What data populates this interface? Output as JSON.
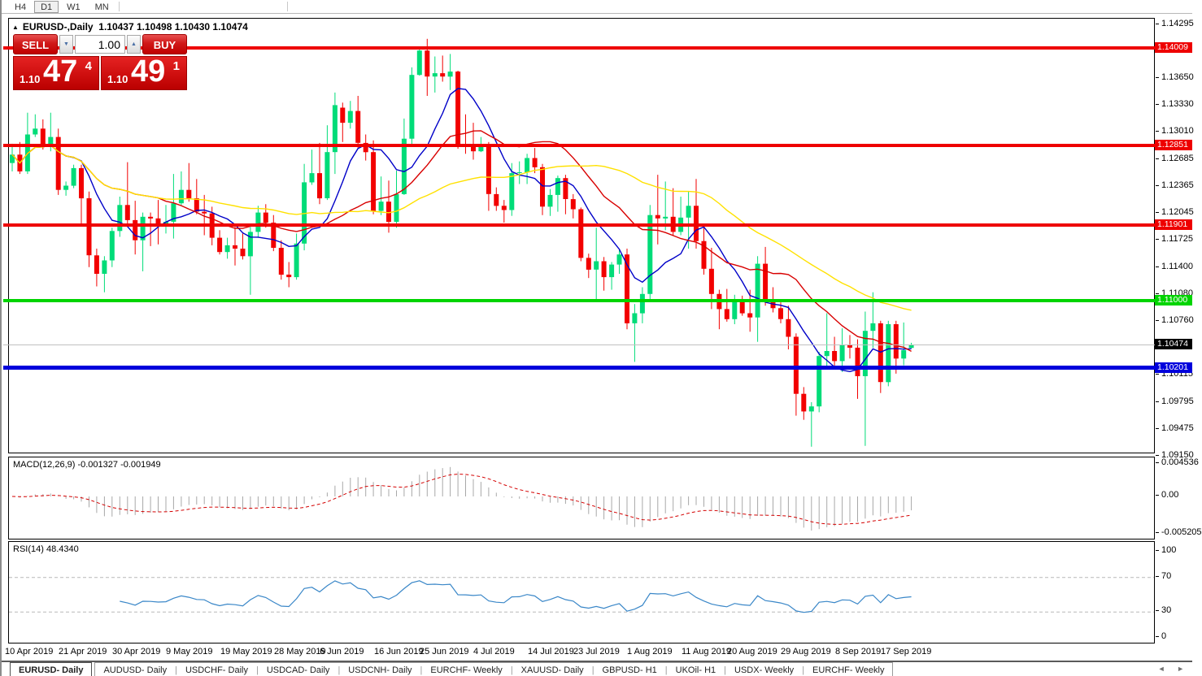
{
  "toolbar": {
    "timeframes": [
      {
        "label": "H4",
        "active": false
      },
      {
        "label": "D1",
        "active": true
      },
      {
        "label": "W1",
        "active": false
      },
      {
        "label": "MN",
        "active": false
      }
    ]
  },
  "chart": {
    "collapse_icon": "▲",
    "symbol_title": "EURUSD-,Daily",
    "ohlc_line": "1.10437 1.10498 1.10430 1.10474",
    "trade": {
      "sell_label": "SELL",
      "buy_label": "BUY",
      "volume": "1.00",
      "down_arrow": "▼",
      "up_arrow": "▲",
      "sell_small": "1.10",
      "sell_big": "47",
      "sell_sup": "4",
      "buy_small": "1.10",
      "buy_big": "49",
      "buy_sup": "1"
    }
  },
  "chart_data": {
    "type": "candlestick",
    "symbol": "EURUSD-",
    "period": "Daily",
    "current_bar": {
      "open": 1.10437,
      "high": 1.10498,
      "low": 1.1043,
      "close": 1.10474
    },
    "bid": {
      "label": "1.10474",
      "price": 1.10474,
      "line_color": "#C0C0C0",
      "badge_color": "#000000"
    },
    "y_range": [
      1.0919,
      1.1436
    ],
    "y_ticks": [
      "1.14295",
      "1.13650",
      "1.13330",
      "1.13010",
      "1.12685",
      "1.12365",
      "1.12045",
      "1.11725",
      "1.11400",
      "1.11080",
      "1.10760",
      "1.10115",
      "1.09795",
      "1.09475",
      "1.09150"
    ],
    "price_lines": [
      {
        "label": "1.14009",
        "price": 1.14009,
        "color": "#EE0000",
        "width": 4
      },
      {
        "label": "1.12851",
        "price": 1.12851,
        "color": "#EE0000",
        "width": 4
      },
      {
        "label": "1.11901",
        "price": 1.11901,
        "color": "#EE0000",
        "width": 4
      },
      {
        "label": "1.11000",
        "price": 1.11,
        "color": "#00D400",
        "width": 4
      },
      {
        "label": "1.10201",
        "price": 1.10201,
        "color": "#0000DC",
        "width": 5
      }
    ],
    "bull_color": "#00DC78",
    "bear_color": "#F20000",
    "moving_averages": [
      {
        "name": "ma-fast",
        "period": 8,
        "color": "#0000C8"
      },
      {
        "name": "ma-mid",
        "period": 20,
        "color": "#D80000"
      },
      {
        "name": "ma-slow",
        "period": 40,
        "color": "#FFE100"
      }
    ],
    "x_labels": [
      {
        "label": "10 Apr 2019",
        "index": 0
      },
      {
        "label": "21 Apr 2019",
        "index": 7
      },
      {
        "label": "30 Apr 2019",
        "index": 14
      },
      {
        "label": "9 May 2019",
        "index": 21
      },
      {
        "label": "19 May 2019",
        "index": 28
      },
      {
        "label": "28 May 2019",
        "index": 35
      },
      {
        "label": "6 Jun 2019",
        "index": 41
      },
      {
        "label": "16 Jun 2019",
        "index": 48
      },
      {
        "label": "25 Jun 2019",
        "index": 54
      },
      {
        "label": "4 Jul 2019",
        "index": 61
      },
      {
        "label": "14 Jul 2019",
        "index": 68
      },
      {
        "label": "23 Jul 2019",
        "index": 74
      },
      {
        "label": "1 Aug 2019",
        "index": 81
      },
      {
        "label": "11 Aug 2019",
        "index": 88
      },
      {
        "label": "20 Aug 2019",
        "index": 94
      },
      {
        "label": "29 Aug 2019",
        "index": 101
      },
      {
        "label": "8 Sep 2019",
        "index": 108
      },
      {
        "label": "17 Sep 2019",
        "index": 114
      }
    ],
    "candles": [
      [
        1.1264,
        1.1287,
        1.1254,
        1.1274
      ],
      [
        1.1274,
        1.1289,
        1.1251,
        1.1254
      ],
      [
        1.1254,
        1.1324,
        1.1251,
        1.1298
      ],
      [
        1.1298,
        1.1322,
        1.1295,
        1.1305
      ],
      [
        1.1305,
        1.1316,
        1.128,
        1.1285
      ],
      [
        1.1285,
        1.1324,
        1.1278,
        1.1295
      ],
      [
        1.1295,
        1.1305,
        1.1226,
        1.1232
      ],
      [
        1.1232,
        1.1242,
        1.1225,
        1.1237
      ],
      [
        1.1237,
        1.1262,
        1.1234,
        1.1258
      ],
      [
        1.1258,
        1.1262,
        1.1192,
        1.1222
      ],
      [
        1.1222,
        1.123,
        1.114,
        1.1154
      ],
      [
        1.1154,
        1.1162,
        1.1117,
        1.1132
      ],
      [
        1.1132,
        1.1153,
        1.111,
        1.1148
      ],
      [
        1.1148,
        1.1187,
        1.114,
        1.1183
      ],
      [
        1.1183,
        1.1224,
        1.1176,
        1.1214
      ],
      [
        1.1214,
        1.1265,
        1.119,
        1.1196
      ],
      [
        1.1196,
        1.1219,
        1.1155,
        1.1172
      ],
      [
        1.1172,
        1.1205,
        1.1135,
        1.12
      ],
      [
        1.12,
        1.1205,
        1.1165,
        1.1198
      ],
      [
        1.1198,
        1.122,
        1.1167,
        1.1192
      ],
      [
        1.1192,
        1.1214,
        1.118,
        1.1194
      ],
      [
        1.1194,
        1.1251,
        1.1174,
        1.1216
      ],
      [
        1.1216,
        1.1254,
        1.1214,
        1.1232
      ],
      [
        1.1232,
        1.1264,
        1.1218,
        1.1222
      ],
      [
        1.1222,
        1.1245,
        1.1203,
        1.1206
      ],
      [
        1.1206,
        1.1226,
        1.1178,
        1.1204
      ],
      [
        1.1204,
        1.1212,
        1.1166,
        1.1175
      ],
      [
        1.1175,
        1.1184,
        1.1155,
        1.1158
      ],
      [
        1.1158,
        1.1175,
        1.115,
        1.1166
      ],
      [
        1.1166,
        1.1188,
        1.1142,
        1.1162
      ],
      [
        1.1162,
        1.118,
        1.1149,
        1.1153
      ],
      [
        1.1153,
        1.1188,
        1.1107,
        1.1182
      ],
      [
        1.1182,
        1.1213,
        1.1175,
        1.1205
      ],
      [
        1.1205,
        1.1215,
        1.1187,
        1.1193
      ],
      [
        1.1193,
        1.1202,
        1.1159,
        1.1163
      ],
      [
        1.1163,
        1.1172,
        1.1125,
        1.1131
      ],
      [
        1.1131,
        1.1146,
        1.1116,
        1.1128
      ],
      [
        1.1128,
        1.118,
        1.1125,
        1.1168
      ],
      [
        1.1168,
        1.1263,
        1.116,
        1.1241
      ],
      [
        1.1241,
        1.128,
        1.1238,
        1.1252
      ],
      [
        1.1252,
        1.1288,
        1.1215,
        1.1222
      ],
      [
        1.1222,
        1.1309,
        1.122,
        1.1277
      ],
      [
        1.1277,
        1.1348,
        1.1251,
        1.1333
      ],
      [
        1.133,
        1.1336,
        1.1289,
        1.1312
      ],
      [
        1.1312,
        1.1338,
        1.1305,
        1.1326
      ],
      [
        1.1326,
        1.1344,
        1.1282,
        1.1288
      ],
      [
        1.1288,
        1.1298,
        1.1267,
        1.1277
      ],
      [
        1.1277,
        1.1291,
        1.1203,
        1.1207
      ],
      [
        1.1207,
        1.1248,
        1.1202,
        1.1218
      ],
      [
        1.1218,
        1.1243,
        1.1181,
        1.1194
      ],
      [
        1.1194,
        1.1255,
        1.1187,
        1.1227
      ],
      [
        1.1227,
        1.1317,
        1.1226,
        1.1293
      ],
      [
        1.1293,
        1.1378,
        1.1285,
        1.1369
      ],
      [
        1.1369,
        1.1403,
        1.1368,
        1.1398
      ],
      [
        1.1398,
        1.1412,
        1.1344,
        1.1367
      ],
      [
        1.1367,
        1.1391,
        1.1348,
        1.1371
      ],
      [
        1.1371,
        1.1392,
        1.1361,
        1.1367
      ],
      [
        1.1367,
        1.1394,
        1.1351,
        1.1373
      ],
      [
        1.1373,
        1.1374,
        1.1281,
        1.1285
      ],
      [
        1.1285,
        1.1322,
        1.1275,
        1.1284
      ],
      [
        1.1284,
        1.1312,
        1.1268,
        1.1278
      ],
      [
        1.1278,
        1.1295,
        1.1277,
        1.1283
      ],
      [
        1.1283,
        1.1289,
        1.1207,
        1.1227
      ],
      [
        1.1227,
        1.1235,
        1.1207,
        1.1213
      ],
      [
        1.1213,
        1.122,
        1.1193,
        1.1208
      ],
      [
        1.1208,
        1.1264,
        1.1201,
        1.1252
      ],
      [
        1.1252,
        1.1266,
        1.1239,
        1.1253
      ],
      [
        1.1253,
        1.1275,
        1.1239,
        1.127
      ],
      [
        1.127,
        1.1282,
        1.1252,
        1.1259
      ],
      [
        1.1259,
        1.1263,
        1.1202,
        1.1212
      ],
      [
        1.1212,
        1.1233,
        1.1201,
        1.1226
      ],
      [
        1.1226,
        1.1249,
        1.1206,
        1.1246
      ],
      [
        1.1246,
        1.125,
        1.1203,
        1.1221
      ],
      [
        1.1221,
        1.1227,
        1.1198,
        1.1209
      ],
      [
        1.1209,
        1.1211,
        1.1147,
        1.1151
      ],
      [
        1.1151,
        1.1156,
        1.1127,
        1.1137
      ],
      [
        1.1137,
        1.1187,
        1.1101,
        1.1147
      ],
      [
        1.1147,
        1.1152,
        1.1112,
        1.1128
      ],
      [
        1.1128,
        1.1146,
        1.1113,
        1.1143
      ],
      [
        1.1143,
        1.1162,
        1.1132,
        1.1155
      ],
      [
        1.1155,
        1.1162,
        1.1066,
        1.1073
      ],
      [
        1.1073,
        1.1096,
        1.1027,
        1.1085
      ],
      [
        1.1085,
        1.1116,
        1.1073,
        1.1108
      ],
      [
        1.1108,
        1.1214,
        1.1101,
        1.1202
      ],
      [
        1.1202,
        1.125,
        1.1167,
        1.1198
      ],
      [
        1.1198,
        1.1242,
        1.1184,
        1.12
      ],
      [
        1.12,
        1.1234,
        1.1178,
        1.1182
      ],
      [
        1.1182,
        1.1224,
        1.1178,
        1.1199
      ],
      [
        1.1199,
        1.123,
        1.1162,
        1.1213
      ],
      [
        1.1213,
        1.1245,
        1.1162,
        1.1171
      ],
      [
        1.1171,
        1.1192,
        1.1131,
        1.1138
      ],
      [
        1.1138,
        1.1163,
        1.109,
        1.1108
      ],
      [
        1.1108,
        1.1113,
        1.1066,
        1.109
      ],
      [
        1.109,
        1.1114,
        1.1075,
        1.1078
      ],
      [
        1.1078,
        1.1107,
        1.1072,
        1.1099
      ],
      [
        1.1099,
        1.1106,
        1.1082,
        1.1085
      ],
      [
        1.1085,
        1.1113,
        1.1063,
        1.108
      ],
      [
        1.108,
        1.1153,
        1.1051,
        1.1144
      ],
      [
        1.1144,
        1.1164,
        1.1094,
        1.1101
      ],
      [
        1.1101,
        1.1116,
        1.1086,
        1.1091
      ],
      [
        1.1091,
        1.1098,
        1.1073,
        1.1078
      ],
      [
        1.1078,
        1.1094,
        1.1042,
        1.1057
      ],
      [
        1.1057,
        1.1061,
        1.0963,
        1.0989
      ],
      [
        1.0989,
        1.0997,
        1.0958,
        1.0968
      ],
      [
        1.0968,
        1.0979,
        1.0926,
        1.0974
      ],
      [
        1.0974,
        1.1039,
        1.0967,
        1.1034
      ],
      [
        1.1034,
        1.1085,
        1.1022,
        1.104
      ],
      [
        1.104,
        1.1057,
        1.1019,
        1.1028
      ],
      [
        1.1028,
        1.1067,
        1.1015,
        1.1047
      ],
      [
        1.1047,
        1.1059,
        1.1031,
        1.1044
      ],
      [
        1.1044,
        1.1054,
        1.0983,
        1.101
      ],
      [
        1.101,
        1.1087,
        1.0927,
        1.1064
      ],
      [
        1.1064,
        1.111,
        1.1044,
        1.1073
      ],
      [
        1.1073,
        1.1076,
        1.099,
        1.1003
      ],
      [
        1.1003,
        1.1076,
        1.0998,
        1.1072
      ],
      [
        1.1072,
        1.1076,
        1.1013,
        1.1031
      ],
      [
        1.1031,
        1.1074,
        1.1023,
        1.1041
      ],
      [
        1.10437,
        1.10498,
        1.1043,
        1.10474
      ]
    ]
  },
  "indicators": {
    "macd": {
      "label": "MACD(12,26,9) -0.001327 -0.001949",
      "fast": 12,
      "slow": 26,
      "signal_period": 9,
      "value": -0.001327,
      "signal_value": -0.001949,
      "scale_max": 0.004536,
      "scale_min": -0.005205,
      "axis": [
        "0.004536",
        "0.00",
        "-0.005205"
      ],
      "bar_color": "#A8A8A8",
      "signal_color": "#D40000"
    },
    "rsi": {
      "label": "RSI(14) 48.4340",
      "period": 14,
      "value": 48.434,
      "axis": [
        {
          "v": 100,
          "t": "100"
        },
        {
          "v": 70,
          "t": "70"
        },
        {
          "v": 30,
          "t": "30"
        },
        {
          "v": 0,
          "t": "0"
        }
      ],
      "levels": [
        70,
        30
      ],
      "line_color": "#3A87C8",
      "level_color": "#B8B8B8"
    }
  },
  "tabs": {
    "items": [
      {
        "label": "EURUSD- Daily",
        "active": true
      },
      {
        "label": "AUDUSD- Daily",
        "active": false
      },
      {
        "label": "USDCHF- Daily",
        "active": false
      },
      {
        "label": "USDCAD- Daily",
        "active": false
      },
      {
        "label": "USDCNH- Daily",
        "active": false
      },
      {
        "label": "EURCHF- Weekly",
        "active": false
      },
      {
        "label": "XAUUSD- Daily",
        "active": false
      },
      {
        "label": "GBPUSD- H1",
        "active": false
      },
      {
        "label": "UKOil- H1",
        "active": false
      },
      {
        "label": "USDX- Weekly",
        "active": false
      },
      {
        "label": "EURCHF- Weekly",
        "active": false
      }
    ],
    "scroll_left": "◄",
    "scroll_right": "►"
  }
}
